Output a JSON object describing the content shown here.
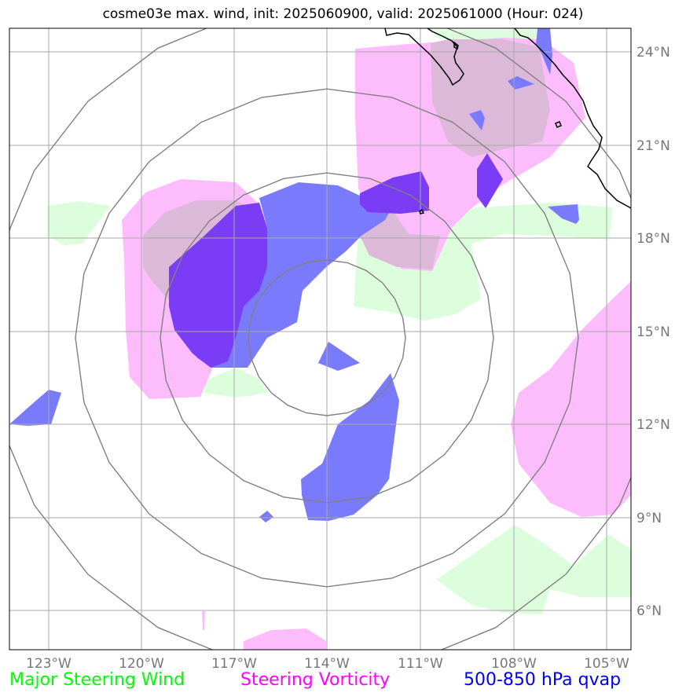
{
  "title": "cosme03e max. wind, init: 2025060900, valid: 2025061000 (Hour: 024)",
  "colors": {
    "wind": "#00ff00",
    "vorticity": "#ff00ff",
    "qvap": "#0000ee",
    "wind_fill": "#ddfedd",
    "vorticity_fill": "#fdbdfd",
    "qvap_fill": "#7a7afc",
    "qvap_dark_fill": "#7a3cf5",
    "grid": "#a9a9a9",
    "range_rings": "#808080",
    "coastline": "#000000"
  },
  "lon_labels": [
    "123°W",
    "120°W",
    "117°W",
    "114°W",
    "111°W",
    "108°W",
    "105°W"
  ],
  "lat_labels": [
    "24°N",
    "21°N",
    "18°N",
    "15°N",
    "12°N",
    "9°N",
    "6°N"
  ],
  "legend": {
    "wind": "Major Steering Wind",
    "vorticity": "Steering Vorticity",
    "qvap": "500-850 hPa qvap"
  },
  "range_rings": {
    "center": "114°W 15°N",
    "count": 4
  }
}
